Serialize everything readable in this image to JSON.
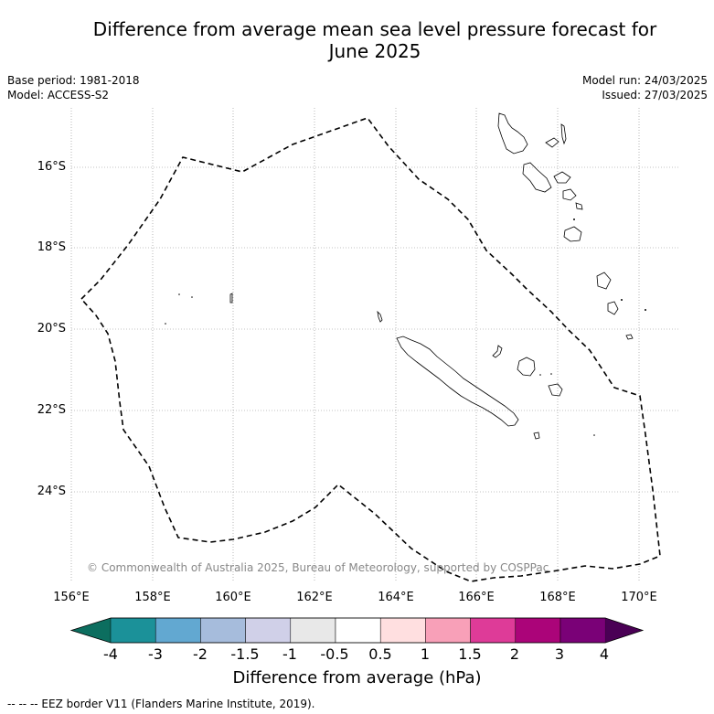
{
  "header": {
    "title_line1": "Difference from average mean sea level pressure forecast for",
    "title_line2": "June 2025",
    "base_period": "Base period: 1981-2018",
    "model": "Model: ACCESS-S2",
    "model_run": "Model run: 24/03/2025",
    "issued": "Issued: 27/03/2025"
  },
  "map": {
    "lat_labels": [
      "16°S",
      "18°S",
      "20°S",
      "22°S",
      "24°S"
    ],
    "lon_labels": [
      "156°E",
      "158°E",
      "160°E",
      "162°E",
      "164°E",
      "166°E",
      "168°E",
      "170°E"
    ],
    "copyright": "© Commonwealth of Australia 2025, Bureau of Meteorology, supported by COSPPac",
    "field_colour": "#ffffff",
    "eez_line_colour": "#000000"
  },
  "colorbar": {
    "title": "Difference from average (hPa)",
    "ticks": [
      "-4",
      "-3",
      "-2",
      "-1.5",
      "-1",
      "-0.5",
      "0.5",
      "1",
      "1.5",
      "2",
      "3",
      "4"
    ],
    "colors": [
      "#0c6e5f",
      "#1b9199",
      "#62a8d1",
      "#a6bcdc",
      "#d0d0e8",
      "#e8e8e8",
      "#ffffff",
      "#ffdfe0",
      "#f8a0b8",
      "#de3b98",
      "#ab0479",
      "#7a0177",
      "#4a0055"
    ]
  },
  "footer": {
    "eez_note": "--  --  -- EEZ border V11 (Flanders Marine Institute, 2019)."
  }
}
